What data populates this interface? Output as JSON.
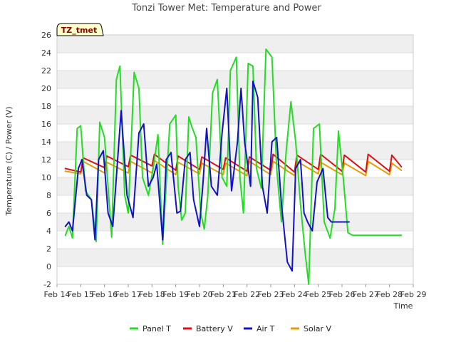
{
  "chart_data": {
    "type": "line",
    "title": "Tonzi Tower Met: Temperature and Power",
    "badge": "TZ_tmet",
    "xlabel": "Time",
    "ylabel": "Temperature (C) / Power (V)",
    "ylim": [
      -2,
      26
    ],
    "yticks": [
      -2,
      0,
      2,
      4,
      6,
      8,
      10,
      12,
      14,
      16,
      18,
      20,
      22,
      24,
      26
    ],
    "xlim": [
      0,
      15
    ],
    "xtick_labels": [
      "Feb 14",
      "Feb 15",
      "Feb 16",
      "Feb 17",
      "Feb 18",
      "Feb 19",
      "Feb 20",
      "Feb 21",
      "Feb 22",
      "Feb 23",
      "Feb 24",
      "Feb 25",
      "Feb 26",
      "Feb 27",
      "Feb 28",
      "Feb 29"
    ],
    "grid": true,
    "legend_position": "bottom",
    "series": [
      {
        "name": "Panel T",
        "color": "#22dd22",
        "x": [
          0.35,
          0.5,
          0.65,
          0.85,
          1.0,
          1.2,
          1.45,
          1.65,
          1.8,
          2.0,
          2.3,
          2.5,
          2.65,
          2.85,
          3.0,
          3.25,
          3.45,
          3.6,
          3.85,
          4.05,
          4.25,
          4.45,
          4.75,
          5.0,
          5.1,
          5.25,
          5.4,
          5.55,
          5.7,
          5.85,
          6.05,
          6.2,
          6.35,
          6.55,
          6.75,
          6.95,
          7.15,
          7.3,
          7.55,
          7.7,
          7.85,
          8.05,
          8.25,
          8.4,
          8.6,
          8.8,
          9.05,
          9.25,
          9.45,
          9.65,
          9.85,
          10.05,
          10.25,
          10.45,
          10.6,
          10.8,
          11.05,
          11.25,
          11.5,
          11.7,
          11.85,
          12.05,
          12.25,
          12.45,
          12.6,
          12.8,
          13.05,
          13.3,
          13.5,
          13.65,
          13.85,
          14.05,
          14.2,
          14.35,
          14.5
        ],
        "values": [
          3.5,
          4.5,
          3.2,
          15.5,
          15.8,
          8.5,
          7.5,
          2.8,
          16.2,
          14.5,
          3.3,
          21.0,
          22.5,
          8.0,
          6.0,
          21.8,
          20.0,
          10.0,
          8.0,
          11.0,
          14.8,
          2.5,
          16.0,
          17.0,
          9.0,
          5.2,
          6.0,
          16.8,
          15.5,
          14.5,
          6.0,
          4.2,
          8.0,
          19.5,
          21.0,
          10.0,
          9.0,
          22.0,
          23.5,
          10.0,
          6.0,
          22.8,
          22.5,
          11.0,
          8.8,
          24.4,
          23.5,
          11.0,
          5.0,
          13.0,
          18.5,
          14.0,
          7.0,
          1.5,
          -2.0,
          15.5,
          16.0,
          5.0,
          3.2,
          6.5,
          15.2,
          10.0,
          3.8,
          3.5,
          3.5,
          3.5,
          3.5,
          3.5,
          3.5,
          3.5,
          3.5,
          3.5,
          3.5,
          3.5,
          3.5
        ]
      },
      {
        "name": "Battery V",
        "color": "#dd1111",
        "x": [
          0.35,
          1.0,
          1.1,
          2.0,
          2.1,
          3.0,
          3.1,
          4.0,
          4.1,
          5.0,
          5.1,
          6.0,
          6.1,
          7.0,
          7.1,
          8.0,
          8.1,
          9.0,
          9.1,
          10.0,
          10.1,
          11.0,
          11.1,
          12.0,
          12.1,
          13.0,
          13.1,
          14.0,
          14.1,
          14.5
        ],
        "values": [
          11.0,
          10.6,
          12.2,
          11.1,
          12.4,
          11.2,
          12.5,
          11.3,
          12.6,
          10.8,
          12.4,
          10.9,
          12.3,
          10.9,
          12.2,
          10.7,
          12.3,
          10.8,
          12.6,
          10.6,
          12.5,
          10.9,
          12.6,
          10.7,
          12.5,
          10.6,
          12.6,
          10.7,
          12.5,
          11.2
        ]
      },
      {
        "name": "Air T",
        "color": "#1111cc",
        "x": [
          0.35,
          0.5,
          0.65,
          0.9,
          1.05,
          1.25,
          1.45,
          1.6,
          1.75,
          1.95,
          2.15,
          2.35,
          2.5,
          2.7,
          2.95,
          3.2,
          3.45,
          3.65,
          3.85,
          4.05,
          4.2,
          4.45,
          4.6,
          4.8,
          5.05,
          5.2,
          5.4,
          5.6,
          5.75,
          6.0,
          6.15,
          6.3,
          6.5,
          6.75,
          6.95,
          7.15,
          7.35,
          7.6,
          7.75,
          7.9,
          8.15,
          8.25,
          8.45,
          8.65,
          8.85,
          9.05,
          9.25,
          9.45,
          9.7,
          9.9,
          10.05,
          10.25,
          10.4,
          10.55,
          10.75,
          10.95,
          11.2,
          11.4,
          11.55,
          11.7,
          11.85,
          12.0,
          12.15,
          12.3
        ],
        "values": [
          4.5,
          5.0,
          4.0,
          11.0,
          12.0,
          8.0,
          7.5,
          3.0,
          12.0,
          13.0,
          6.0,
          4.5,
          10.0,
          17.5,
          8.0,
          5.5,
          15.0,
          16.0,
          9.0,
          10.0,
          11.5,
          3.0,
          12.0,
          12.8,
          6.0,
          6.2,
          12.0,
          12.8,
          7.5,
          4.5,
          9.5,
          15.5,
          9.0,
          8.0,
          15.0,
          20.0,
          8.5,
          14.0,
          20.0,
          14.0,
          9.0,
          20.8,
          19.0,
          9.0,
          6.0,
          14.0,
          14.5,
          7.0,
          0.5,
          -0.5,
          11.0,
          12.0,
          6.0,
          5.0,
          4.0,
          9.5,
          11.0,
          5.5,
          5.0,
          5.0,
          5.0,
          5.0,
          5.0,
          5.0
        ]
      },
      {
        "name": "Solar V",
        "color": "#ee9900",
        "x": [
          0.35,
          1.0,
          1.1,
          2.0,
          2.1,
          3.0,
          3.1,
          4.0,
          4.1,
          5.0,
          5.1,
          6.0,
          6.1,
          7.0,
          7.1,
          8.0,
          8.1,
          9.0,
          9.1,
          10.0,
          10.1,
          11.0,
          11.1,
          12.0,
          12.1,
          13.0,
          13.1,
          14.0,
          14.1,
          14.5
        ],
        "values": [
          10.7,
          10.4,
          11.8,
          10.5,
          11.7,
          10.5,
          11.8,
          10.5,
          11.9,
          10.3,
          11.7,
          10.4,
          11.6,
          10.3,
          11.6,
          10.2,
          11.8,
          10.3,
          11.8,
          10.2,
          11.8,
          10.4,
          11.7,
          10.3,
          11.6,
          10.2,
          11.8,
          10.3,
          11.6,
          10.8
        ]
      }
    ]
  }
}
